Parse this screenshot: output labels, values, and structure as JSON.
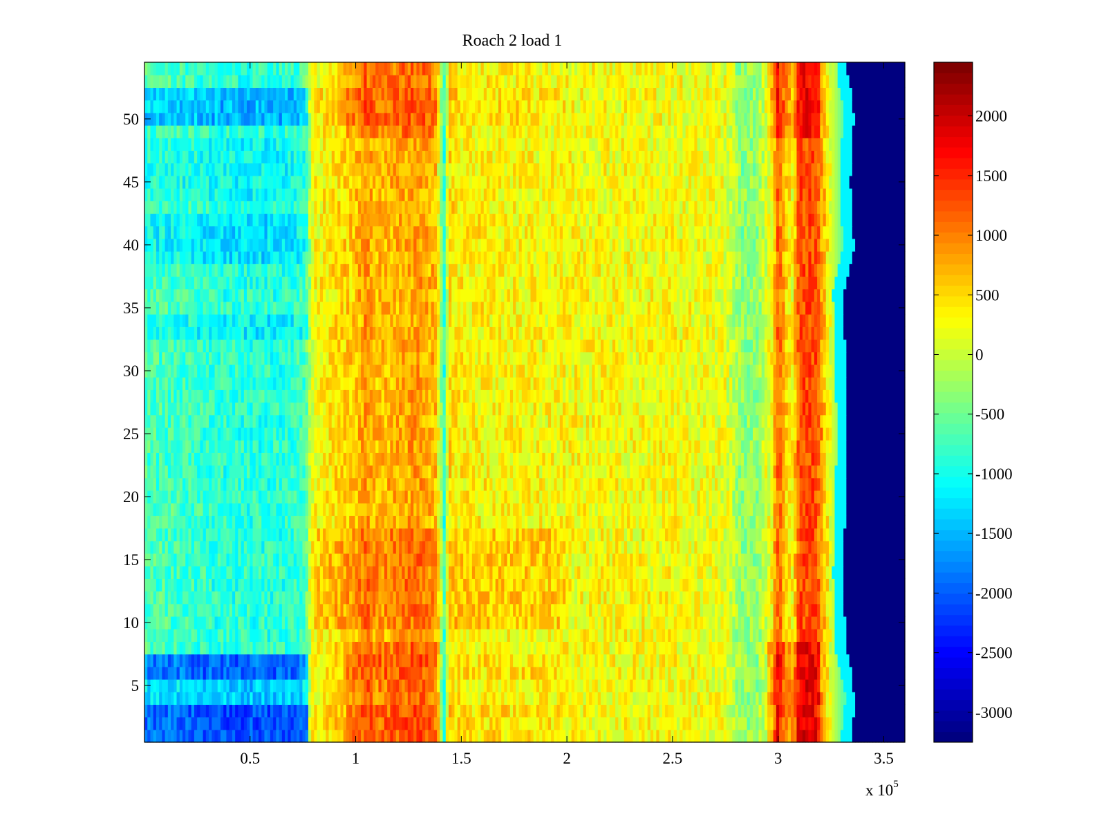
{
  "chart_data": {
    "type": "heatmap",
    "title": "Roach 2 load 1",
    "xlabel": "",
    "ylabel": "",
    "x_exponent_label": "x 10",
    "x_exponent_power": "5",
    "xlim": [
      0,
      3.6
    ],
    "ylim": [
      0.5,
      54.5
    ],
    "x_ticks": [
      0.5,
      1,
      1.5,
      2,
      2.5,
      3,
      3.5
    ],
    "x_tick_labels": [
      "0.5",
      "1",
      "1.5",
      "2",
      "2.5",
      "3",
      "3.5"
    ],
    "y_ticks": [
      5,
      10,
      15,
      20,
      25,
      30,
      35,
      40,
      45,
      50
    ],
    "y_tick_labels": [
      "5",
      "10",
      "15",
      "20",
      "25",
      "30",
      "35",
      "40",
      "45",
      "50"
    ],
    "rows": 54,
    "colormap": "jet",
    "colorbar": {
      "range": [
        -3250,
        2450
      ],
      "ticks": [
        2000,
        1500,
        1000,
        500,
        0,
        -500,
        -1000,
        -1500,
        -2000,
        -2500,
        -3000
      ],
      "tick_labels": [
        "2000",
        "1500",
        "1000",
        "500",
        "0",
        "-500",
        "-1000",
        "-1500",
        "-2000",
        "-2500",
        "-3000"
      ]
    },
    "x_band_profile": {
      "x": [
        0.0,
        0.2,
        0.3,
        0.5,
        0.7,
        0.76,
        0.8,
        0.9,
        1.0,
        1.05,
        1.1,
        1.2,
        1.3,
        1.38,
        1.42,
        1.44,
        1.5,
        2.0,
        2.5,
        2.75,
        2.83,
        2.9,
        2.97,
        3.0,
        3.04,
        3.07,
        3.1,
        3.14,
        3.18,
        3.25,
        3.3,
        3.6
      ],
      "value": [
        -700,
        -750,
        -850,
        -900,
        -850,
        -700,
        250,
        450,
        600,
        900,
        650,
        750,
        850,
        650,
        -900,
        450,
        350,
        280,
        270,
        180,
        -350,
        -300,
        300,
        1200,
        500,
        250,
        1300,
        1300,
        1300,
        100,
        -500,
        -3250
      ]
    },
    "dropoff_x_by_row": [
      {
        "row": 1,
        "x": 3.35
      },
      {
        "row": 4,
        "x": 3.37
      },
      {
        "row": 8,
        "x": 3.32
      },
      {
        "row": 14,
        "x": 3.31
      },
      {
        "row": 20,
        "x": 3.32
      },
      {
        "row": 25,
        "x": 3.33
      },
      {
        "row": 30,
        "x": 3.32
      },
      {
        "row": 36,
        "x": 3.31
      },
      {
        "row": 40,
        "x": 3.36
      },
      {
        "row": 45,
        "x": 3.34
      },
      {
        "row": 50,
        "x": 3.36
      },
      {
        "row": 54,
        "x": 3.33
      }
    ],
    "cold_rows": [
      {
        "rows": [
          1,
          3
        ],
        "delta": -1200
      },
      {
        "rows": [
          4,
          5
        ],
        "delta": -500
      },
      {
        "rows": [
          6,
          7
        ],
        "delta": -1100
      },
      {
        "rows": [
          50,
          52
        ],
        "delta": -650
      },
      {
        "rows": [
          39,
          42
        ],
        "delta": -350
      },
      {
        "rows": [
          33,
          34
        ],
        "delta": -250
      },
      {
        "rows": [
          44,
          48
        ],
        "delta": -200
      }
    ],
    "warm_rows": [
      {
        "rows": [
          10,
          17
        ],
        "delta": 550
      }
    ],
    "hot_edge_rows": [
      {
        "rows": [
          1,
          8
        ],
        "delta": 350
      },
      {
        "rows": [
          49,
          54
        ],
        "delta": 300
      }
    ]
  }
}
